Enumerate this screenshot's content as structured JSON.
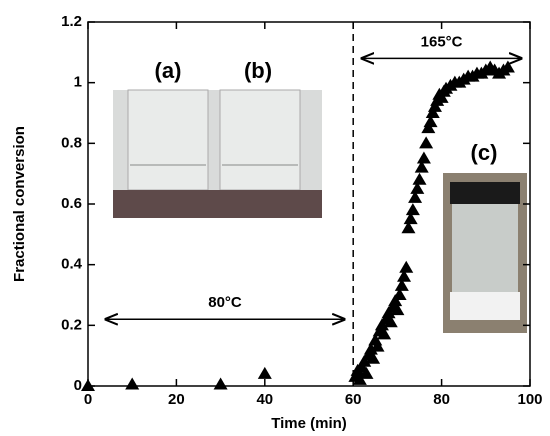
{
  "chart_data": {
    "type": "scatter",
    "x_label": "Time (min)",
    "y_label": "Fractional conversion",
    "xlim": [
      0,
      100
    ],
    "xticks": [
      0,
      20,
      40,
      60,
      80,
      100
    ],
    "ylim": [
      0,
      1.2
    ],
    "yticks": [
      0,
      0.2,
      0.4,
      0.6,
      0.8,
      1,
      1.2
    ],
    "color": "#000000",
    "x": [
      0,
      10,
      30,
      40,
      60.5,
      61,
      61.5,
      62,
      62.5,
      63,
      63.5,
      64,
      64.5,
      65,
      65.5,
      66,
      66.5,
      67,
      67.5,
      68,
      68.5,
      69,
      69.5,
      70,
      70.5,
      71,
      71.5,
      72,
      72.5,
      73,
      73.5,
      74,
      74.5,
      75,
      75.5,
      76,
      76.5,
      77,
      77.5,
      78,
      78.5,
      79,
      79.5,
      80,
      80.5,
      81,
      82,
      83,
      84,
      85,
      86,
      87,
      88,
      89,
      90,
      91,
      92,
      93,
      94,
      95
    ],
    "values": [
      0,
      0.005,
      0.005,
      0.04,
      0.03,
      0.05,
      0.02,
      0.06,
      0.08,
      0.04,
      0.1,
      0.12,
      0.09,
      0.15,
      0.13,
      0.18,
      0.2,
      0.17,
      0.22,
      0.24,
      0.21,
      0.26,
      0.28,
      0.25,
      0.3,
      0.33,
      0.36,
      0.39,
      0.52,
      0.55,
      0.58,
      0.62,
      0.65,
      0.68,
      0.72,
      0.75,
      0.8,
      0.85,
      0.87,
      0.9,
      0.92,
      0.94,
      0.96,
      0.95,
      0.97,
      0.98,
      0.99,
      1.0,
      1.0,
      1.01,
      1.02,
      1.02,
      1.03,
      1.03,
      1.04,
      1.05,
      1.04,
      1.03,
      1.04,
      1.05
    ],
    "vline_x": 60,
    "annotations": [
      {
        "text": "80°C",
        "x": [
          4,
          58
        ],
        "y": 0.22
      },
      {
        "text": "165°C",
        "x": [
          62,
          98
        ],
        "y": 1.08
      }
    ],
    "photo_labels": [
      "(a)",
      "(b)",
      "(c)"
    ]
  }
}
